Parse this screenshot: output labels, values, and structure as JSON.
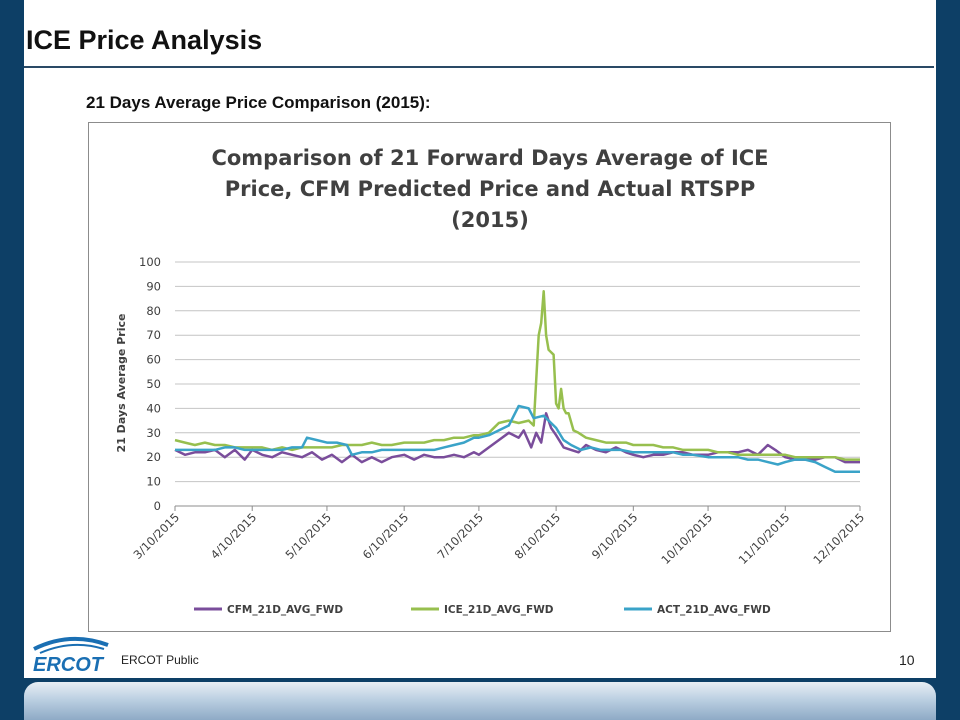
{
  "slide": {
    "title": "ICE Price Analysis",
    "subtitle": "21 Days Average Price Comparison (2015):",
    "footer": "ERCOT Public",
    "page_number": "10",
    "logo_text": "ERCOT"
  },
  "colors": {
    "background": "#0d3f66",
    "cfm": "#7a4d9b",
    "ice": "#97bf4e",
    "act": "#3aa3c8",
    "logo": "#1a6fb3"
  },
  "chart_data": {
    "type": "line",
    "title_lines": [
      "Comparison of 21 Forward Days Average of  ICE",
      "Price, CFM Predicted Price and Actual RTSPP",
      "(2015)"
    ],
    "xlabel": "",
    "ylabel": "21 Days Average Price",
    "ylim": [
      0,
      100
    ],
    "yticks": [
      0,
      10,
      20,
      30,
      40,
      50,
      60,
      70,
      80,
      90,
      100
    ],
    "xlim": [
      "2015-03-10",
      "2015-12-10"
    ],
    "xticks": [
      "3/10/2015",
      "4/10/2015",
      "5/10/2015",
      "6/10/2015",
      "7/10/2015",
      "8/10/2015",
      "9/10/2015",
      "10/10/2015",
      "11/10/2015",
      "12/10/2015"
    ],
    "grid": true,
    "legend_position": "bottom",
    "series": [
      {
        "name": "CFM_21D_AVG_FWD",
        "color": "#7a4d9b",
        "points": [
          [
            "2015-03-10",
            23
          ],
          [
            "2015-03-14",
            21
          ],
          [
            "2015-03-18",
            22
          ],
          [
            "2015-03-22",
            22
          ],
          [
            "2015-03-26",
            23
          ],
          [
            "2015-03-30",
            20
          ],
          [
            "2015-04-03",
            23
          ],
          [
            "2015-04-07",
            19
          ],
          [
            "2015-04-10",
            23
          ],
          [
            "2015-04-14",
            21
          ],
          [
            "2015-04-18",
            20
          ],
          [
            "2015-04-22",
            22
          ],
          [
            "2015-04-26",
            21
          ],
          [
            "2015-04-30",
            20
          ],
          [
            "2015-05-04",
            22
          ],
          [
            "2015-05-08",
            19
          ],
          [
            "2015-05-12",
            21
          ],
          [
            "2015-05-16",
            18
          ],
          [
            "2015-05-20",
            21
          ],
          [
            "2015-05-24",
            18
          ],
          [
            "2015-05-28",
            20
          ],
          [
            "2015-06-01",
            18
          ],
          [
            "2015-06-05",
            20
          ],
          [
            "2015-06-10",
            21
          ],
          [
            "2015-06-14",
            19
          ],
          [
            "2015-06-18",
            21
          ],
          [
            "2015-06-22",
            20
          ],
          [
            "2015-06-26",
            20
          ],
          [
            "2015-06-30",
            21
          ],
          [
            "2015-07-04",
            20
          ],
          [
            "2015-07-08",
            22
          ],
          [
            "2015-07-10",
            21
          ],
          [
            "2015-07-14",
            24
          ],
          [
            "2015-07-18",
            27
          ],
          [
            "2015-07-22",
            30
          ],
          [
            "2015-07-26",
            28
          ],
          [
            "2015-07-28",
            31
          ],
          [
            "2015-07-31",
            24
          ],
          [
            "2015-08-02",
            30
          ],
          [
            "2015-08-04",
            26
          ],
          [
            "2015-08-06",
            38
          ],
          [
            "2015-08-08",
            32
          ],
          [
            "2015-08-10",
            29
          ],
          [
            "2015-08-13",
            24
          ],
          [
            "2015-08-16",
            23
          ],
          [
            "2015-08-19",
            22
          ],
          [
            "2015-08-22",
            25
          ],
          [
            "2015-08-26",
            23
          ],
          [
            "2015-08-30",
            22
          ],
          [
            "2015-09-03",
            24
          ],
          [
            "2015-09-07",
            22
          ],
          [
            "2015-09-10",
            21
          ],
          [
            "2015-09-14",
            20
          ],
          [
            "2015-09-18",
            21
          ],
          [
            "2015-09-22",
            21
          ],
          [
            "2015-09-26",
            22
          ],
          [
            "2015-09-30",
            22
          ],
          [
            "2015-10-04",
            21
          ],
          [
            "2015-10-10",
            21
          ],
          [
            "2015-10-14",
            22
          ],
          [
            "2015-10-18",
            22
          ],
          [
            "2015-10-22",
            22
          ],
          [
            "2015-10-26",
            23
          ],
          [
            "2015-10-30",
            21
          ],
          [
            "2015-11-03",
            25
          ],
          [
            "2015-11-06",
            23
          ],
          [
            "2015-11-10",
            20
          ],
          [
            "2015-11-14",
            19
          ],
          [
            "2015-11-18",
            19
          ],
          [
            "2015-11-22",
            19
          ],
          [
            "2015-11-26",
            20
          ],
          [
            "2015-11-30",
            20
          ],
          [
            "2015-12-04",
            18
          ],
          [
            "2015-12-10",
            18
          ]
        ]
      },
      {
        "name": "ICE_21D_AVG_FWD",
        "color": "#97bf4e",
        "points": [
          [
            "2015-03-10",
            27
          ],
          [
            "2015-03-14",
            26
          ],
          [
            "2015-03-18",
            25
          ],
          [
            "2015-03-22",
            26
          ],
          [
            "2015-03-26",
            25
          ],
          [
            "2015-03-30",
            25
          ],
          [
            "2015-04-03",
            24
          ],
          [
            "2015-04-07",
            24
          ],
          [
            "2015-04-10",
            24
          ],
          [
            "2015-04-14",
            24
          ],
          [
            "2015-04-18",
            23
          ],
          [
            "2015-04-22",
            24
          ],
          [
            "2015-04-26",
            23
          ],
          [
            "2015-04-30",
            24
          ],
          [
            "2015-05-04",
            24
          ],
          [
            "2015-05-08",
            24
          ],
          [
            "2015-05-12",
            24
          ],
          [
            "2015-05-16",
            25
          ],
          [
            "2015-05-20",
            25
          ],
          [
            "2015-05-24",
            25
          ],
          [
            "2015-05-28",
            26
          ],
          [
            "2015-06-01",
            25
          ],
          [
            "2015-06-05",
            25
          ],
          [
            "2015-06-10",
            26
          ],
          [
            "2015-06-14",
            26
          ],
          [
            "2015-06-18",
            26
          ],
          [
            "2015-06-22",
            27
          ],
          [
            "2015-06-26",
            27
          ],
          [
            "2015-06-30",
            28
          ],
          [
            "2015-07-04",
            28
          ],
          [
            "2015-07-08",
            29
          ],
          [
            "2015-07-10",
            29
          ],
          [
            "2015-07-14",
            30
          ],
          [
            "2015-07-18",
            34
          ],
          [
            "2015-07-22",
            35
          ],
          [
            "2015-07-26",
            34
          ],
          [
            "2015-07-30",
            35
          ],
          [
            "2015-08-01",
            33
          ],
          [
            "2015-08-03",
            70
          ],
          [
            "2015-08-04",
            75
          ],
          [
            "2015-08-05",
            88
          ],
          [
            "2015-08-06",
            70
          ],
          [
            "2015-08-07",
            64
          ],
          [
            "2015-08-08",
            63
          ],
          [
            "2015-08-09",
            62
          ],
          [
            "2015-08-10",
            42
          ],
          [
            "2015-08-11",
            40
          ],
          [
            "2015-08-12",
            48
          ],
          [
            "2015-08-13",
            40
          ],
          [
            "2015-08-14",
            38
          ],
          [
            "2015-08-15",
            38
          ],
          [
            "2015-08-17",
            31
          ],
          [
            "2015-08-19",
            30
          ],
          [
            "2015-08-22",
            28
          ],
          [
            "2015-08-26",
            27
          ],
          [
            "2015-08-30",
            26
          ],
          [
            "2015-09-03",
            26
          ],
          [
            "2015-09-07",
            26
          ],
          [
            "2015-09-10",
            25
          ],
          [
            "2015-09-14",
            25
          ],
          [
            "2015-09-18",
            25
          ],
          [
            "2015-09-22",
            24
          ],
          [
            "2015-09-26",
            24
          ],
          [
            "2015-09-30",
            23
          ],
          [
            "2015-10-04",
            23
          ],
          [
            "2015-10-10",
            23
          ],
          [
            "2015-10-14",
            22
          ],
          [
            "2015-10-18",
            22
          ],
          [
            "2015-10-22",
            21
          ],
          [
            "2015-10-26",
            21
          ],
          [
            "2015-10-30",
            21
          ],
          [
            "2015-11-03",
            21
          ],
          [
            "2015-11-06",
            21
          ],
          [
            "2015-11-10",
            21
          ],
          [
            "2015-11-14",
            20
          ],
          [
            "2015-11-18",
            20
          ],
          [
            "2015-11-22",
            20
          ],
          [
            "2015-11-26",
            20
          ],
          [
            "2015-11-30",
            20
          ],
          [
            "2015-12-04",
            19
          ],
          [
            "2015-12-10",
            19
          ]
        ]
      },
      {
        "name": "ACT_21D_AVG_FWD",
        "color": "#3aa3c8",
        "points": [
          [
            "2015-03-10",
            23
          ],
          [
            "2015-03-14",
            23
          ],
          [
            "2015-03-18",
            23
          ],
          [
            "2015-03-22",
            23
          ],
          [
            "2015-03-26",
            23
          ],
          [
            "2015-03-30",
            24
          ],
          [
            "2015-04-03",
            24
          ],
          [
            "2015-04-07",
            23
          ],
          [
            "2015-04-10",
            23
          ],
          [
            "2015-04-14",
            23
          ],
          [
            "2015-04-18",
            23
          ],
          [
            "2015-04-22",
            23
          ],
          [
            "2015-04-26",
            24
          ],
          [
            "2015-04-30",
            24
          ],
          [
            "2015-05-02",
            28
          ],
          [
            "2015-05-06",
            27
          ],
          [
            "2015-05-10",
            26
          ],
          [
            "2015-05-14",
            26
          ],
          [
            "2015-05-18",
            25
          ],
          [
            "2015-05-20",
            21
          ],
          [
            "2015-05-24",
            22
          ],
          [
            "2015-05-28",
            22
          ],
          [
            "2015-06-01",
            23
          ],
          [
            "2015-06-05",
            23
          ],
          [
            "2015-06-10",
            23
          ],
          [
            "2015-06-14",
            23
          ],
          [
            "2015-06-18",
            23
          ],
          [
            "2015-06-22",
            23
          ],
          [
            "2015-06-26",
            24
          ],
          [
            "2015-06-30",
            25
          ],
          [
            "2015-07-04",
            26
          ],
          [
            "2015-07-08",
            28
          ],
          [
            "2015-07-10",
            28
          ],
          [
            "2015-07-14",
            29
          ],
          [
            "2015-07-18",
            31
          ],
          [
            "2015-07-22",
            33
          ],
          [
            "2015-07-26",
            41
          ],
          [
            "2015-07-30",
            40
          ],
          [
            "2015-08-01",
            36
          ],
          [
            "2015-08-05",
            37
          ],
          [
            "2015-08-08",
            34
          ],
          [
            "2015-08-10",
            32
          ],
          [
            "2015-08-13",
            27
          ],
          [
            "2015-08-16",
            25
          ],
          [
            "2015-08-20",
            23
          ],
          [
            "2015-08-24",
            24
          ],
          [
            "2015-08-28",
            23
          ],
          [
            "2015-09-01",
            23
          ],
          [
            "2015-09-05",
            23
          ],
          [
            "2015-09-10",
            22
          ],
          [
            "2015-09-14",
            22
          ],
          [
            "2015-09-18",
            22
          ],
          [
            "2015-09-22",
            22
          ],
          [
            "2015-09-26",
            22
          ],
          [
            "2015-09-30",
            21
          ],
          [
            "2015-10-04",
            21
          ],
          [
            "2015-10-10",
            20
          ],
          [
            "2015-10-14",
            20
          ],
          [
            "2015-10-18",
            20
          ],
          [
            "2015-10-22",
            20
          ],
          [
            "2015-10-26",
            19
          ],
          [
            "2015-10-30",
            19
          ],
          [
            "2015-11-03",
            18
          ],
          [
            "2015-11-07",
            17
          ],
          [
            "2015-11-10",
            18
          ],
          [
            "2015-11-14",
            19
          ],
          [
            "2015-11-18",
            19
          ],
          [
            "2015-11-22",
            18
          ],
          [
            "2015-11-26",
            16
          ],
          [
            "2015-11-30",
            14
          ],
          [
            "2015-12-04",
            14
          ],
          [
            "2015-12-10",
            14
          ]
        ]
      }
    ]
  }
}
